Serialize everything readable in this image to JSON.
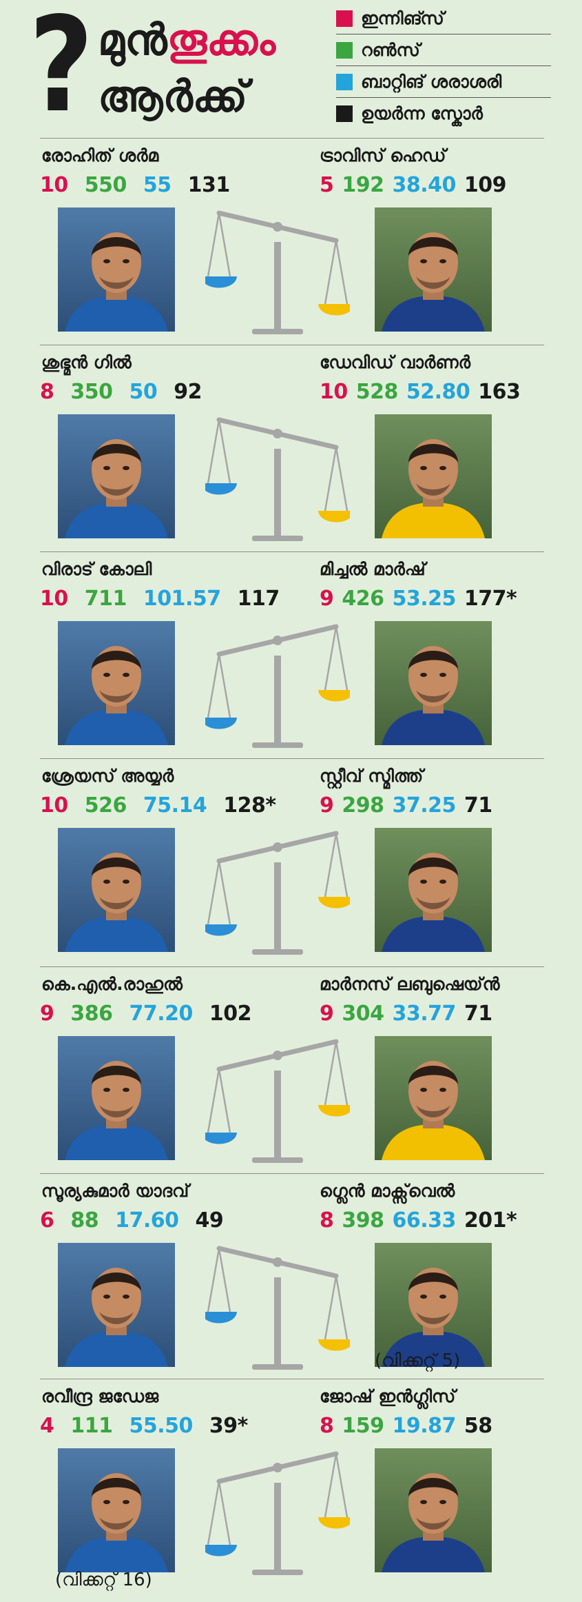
{
  "header": {
    "question_mark": "?",
    "title_part1": "മുൻ",
    "title_part2": "തൂക്കം",
    "title_line2": "ആർക്ക്"
  },
  "legend": [
    {
      "label": "ഇന്നിങ്സ്",
      "color": "#d8114e"
    },
    {
      "label": "റൺസ്",
      "color": "#3aa640"
    },
    {
      "label": "ബാറ്റിങ് ശരാശരി",
      "color": "#23a4dc"
    },
    {
      "label": "ഉയർന്ന സ്കോർ",
      "color": "#1a1a1a"
    }
  ],
  "matchups": [
    {
      "left": {
        "name": "രോഹിത് ശർമ",
        "innings": "10",
        "runs": "550",
        "average": "55",
        "high_score": "131",
        "jersey": "#1f5fae"
      },
      "right": {
        "name": "ട്രാവിസ് ഹെഡ്",
        "innings": "5",
        "runs": "192",
        "average": "38.40",
        "high_score": "109",
        "jersey": "#1d3f8a"
      },
      "tilt": "right"
    },
    {
      "left": {
        "name": "ശുഭ്മൻ ഗിൽ",
        "innings": "8",
        "runs": "350",
        "average": "50",
        "high_score": "92",
        "jersey": "#1f5fae"
      },
      "right": {
        "name": "ഡേവിഡ് വാർണർ",
        "innings": "10",
        "runs": "528",
        "average": "52.80",
        "high_score": "163",
        "jersey": "#f2c000"
      },
      "tilt": "right"
    },
    {
      "left": {
        "name": "വിരാട് കോലി",
        "innings": "10",
        "runs": "711",
        "average": "101.57",
        "high_score": "117",
        "jersey": "#1f5fae"
      },
      "right": {
        "name": "മിച്ചൽ മാർഷ്",
        "innings": "9",
        "runs": "426",
        "average": "53.25",
        "high_score": "177*",
        "jersey": "#1d3f8a"
      },
      "tilt": "left"
    },
    {
      "left": {
        "name": "ശ്രേയസ് അയ്യർ",
        "innings": "10",
        "runs": "526",
        "average": "75.14",
        "high_score": "128*",
        "jersey": "#1f5fae"
      },
      "right": {
        "name": "സ്റ്റീവ് സ്മിത്ത്",
        "innings": "9",
        "runs": "298",
        "average": "37.25",
        "high_score": "71",
        "jersey": "#1d3f8a"
      },
      "tilt": "left"
    },
    {
      "left": {
        "name": "കെ.എൽ.രാഹുൽ",
        "innings": "9",
        "runs": "386",
        "average": "77.20",
        "high_score": "102",
        "jersey": "#1f5fae"
      },
      "right": {
        "name": "മാർനസ് ലബുഷെയ്ൻ",
        "innings": "9",
        "runs": "304",
        "average": "33.77",
        "high_score": "71",
        "jersey": "#f2c000"
      },
      "tilt": "left"
    },
    {
      "left": {
        "name": "സൂര്യകുമാർ യാദവ്",
        "innings": "6",
        "runs": "88",
        "average": "17.60",
        "high_score": "49",
        "jersey": "#1f5fae"
      },
      "right": {
        "name": "ഗ്ലെൻ മാക്സ്‌വെൽ",
        "innings": "8",
        "runs": "398",
        "average": "66.33",
        "high_score": "201*",
        "jersey": "#1d3f8a",
        "note": "(വിക്കറ്റ് 5)"
      },
      "tilt": "right"
    },
    {
      "left": {
        "name": "രവീന്ദ്ര ജഡേജ",
        "innings": "4",
        "runs": "111",
        "average": "55.50",
        "high_score": "39*",
        "jersey": "#1f5fae",
        "note": "(വിക്കറ്റ് 16)"
      },
      "right": {
        "name": "ജോഷ് ഇൻഗ്ലിസ്",
        "innings": "8",
        "runs": "159",
        "average": "19.87",
        "high_score": "58",
        "jersey": "#1d3f8a"
      },
      "tilt": "left"
    }
  ],
  "colors": {
    "background": "#e2eedc",
    "innings": "#d8114e",
    "runs": "#3aa640",
    "average": "#23a4dc",
    "high_score": "#1a1a1a",
    "scale_left_pan": "#2a8fd6",
    "scale_right_pan": "#f5c000",
    "scale_frame": "#a6a6a6"
  }
}
